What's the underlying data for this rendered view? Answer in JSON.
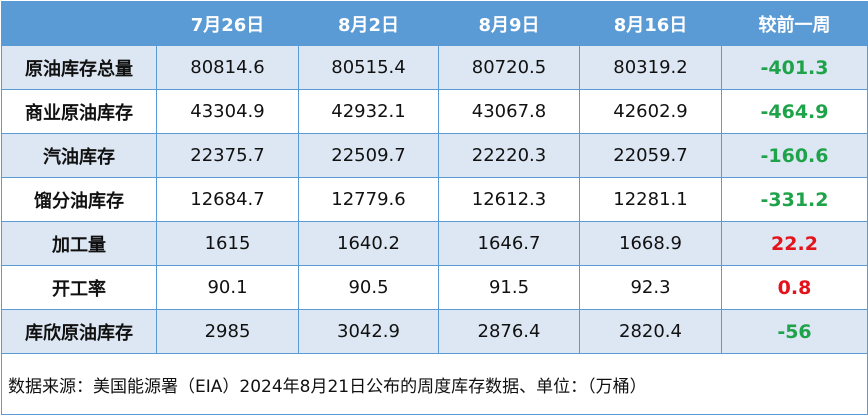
{
  "table": {
    "columns": [
      "7月26日",
      "8月2日",
      "8月9日",
      "8月16日",
      "较前一周"
    ],
    "rows": [
      {
        "label": "原油库存总量",
        "values": [
          "80814.6",
          "80515.4",
          "80720.5",
          "80319.2",
          "-401.3"
        ]
      },
      {
        "label": "商业原油库存",
        "values": [
          "43304.9",
          "42932.1",
          "43067.8",
          "42602.9",
          "-464.9"
        ]
      },
      {
        "label": "汽油库存",
        "values": [
          "22375.7",
          "22509.7",
          "22220.3",
          "22059.7",
          "-160.6"
        ]
      },
      {
        "label": "馏分油库存",
        "values": [
          "12684.7",
          "12779.6",
          "12612.3",
          "12281.1",
          "-331.2"
        ]
      },
      {
        "label": "加工量",
        "values": [
          "1615",
          "1640.2",
          "1646.7",
          "1668.9",
          "22.2"
        ]
      },
      {
        "label": "开工率",
        "values": [
          "90.1",
          "90.5",
          "91.5",
          "92.3",
          "0.8"
        ]
      },
      {
        "label": "库欣原油库存",
        "values": [
          "2985",
          "3042.9",
          "2876.4",
          "2820.4",
          "-56"
        ]
      }
    ],
    "footnote": "数据来源：美国能源署（EIA）2024年8月21日公布的周度库存数据、单位：（万桶）"
  }
}
